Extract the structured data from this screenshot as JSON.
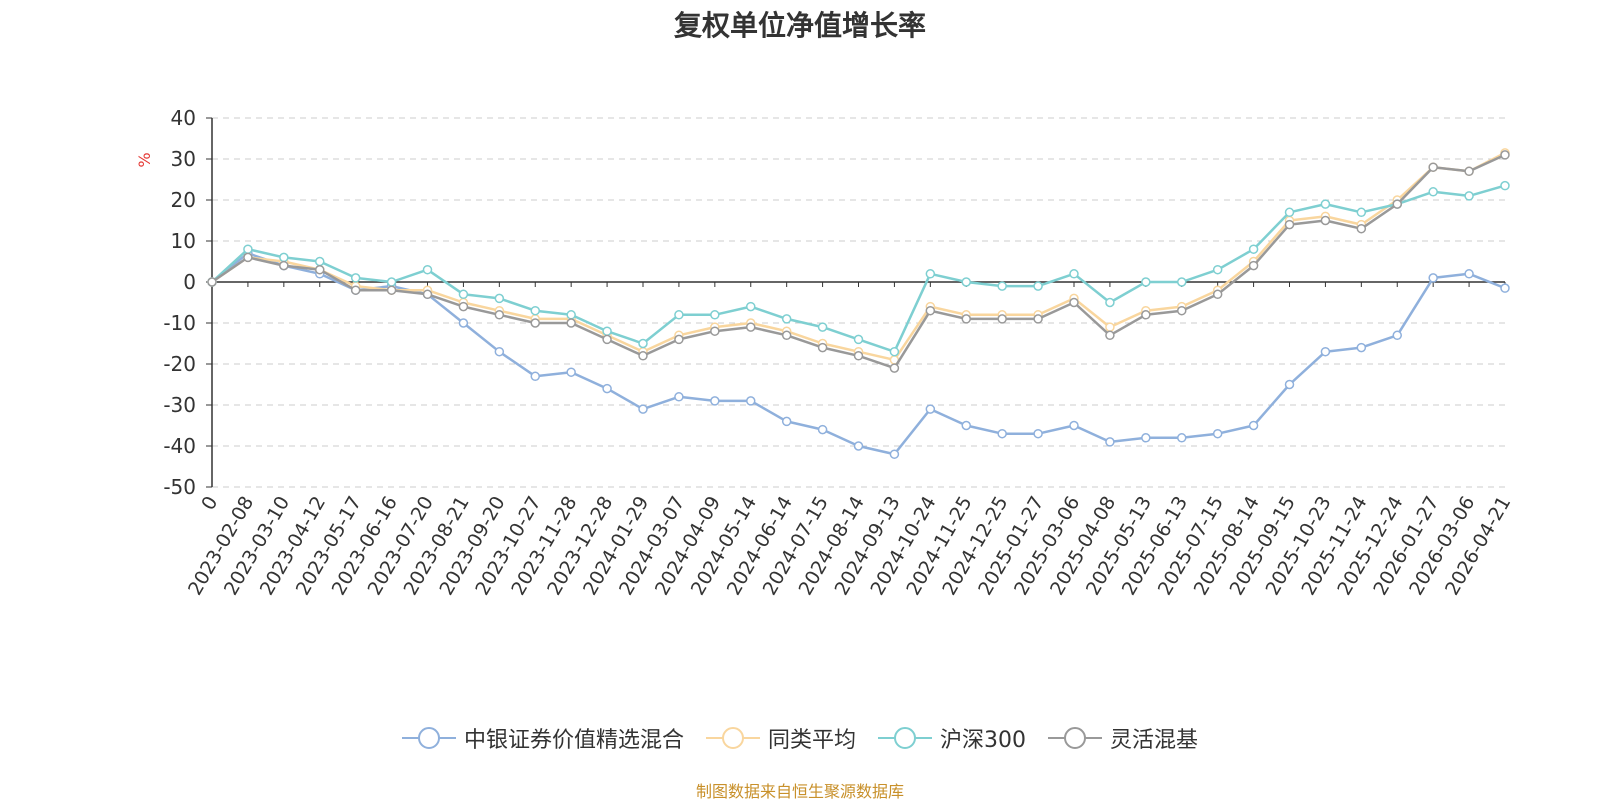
{
  "chart_data": {
    "type": "line",
    "title": "复权单位净值增长率",
    "ylabel": "%",
    "ylim": [
      -50,
      40
    ],
    "yticks": [
      -50,
      -40,
      -30,
      -20,
      -10,
      0,
      10,
      20,
      30,
      40
    ],
    "grid": true,
    "legend_position": "bottom",
    "x": [
      "0",
      "2023-02-08",
      "2023-03-10",
      "2023-04-12",
      "2023-05-17",
      "2023-06-16",
      "2023-07-20",
      "2023-08-21",
      "2023-09-20",
      "2023-10-27",
      "2023-11-28",
      "2023-12-28",
      "2024-01-29",
      "2024-03-07",
      "2024-04-09",
      "2024-05-14",
      "2024-06-14",
      "2024-07-15",
      "2024-08-14",
      "2024-09-13",
      "2024-10-24",
      "2024-11-25",
      "2024-12-25",
      "2025-01-27",
      "2025-03-06",
      "2025-04-08",
      "2025-05-13",
      "2025-06-13",
      "2025-07-15",
      "2025-08-14",
      "2025-09-15",
      "2025-10-23",
      "2025-11-24",
      "2025-12-24",
      "2026-01-27",
      "2026-03-06",
      "2026-04-21"
    ],
    "series": [
      {
        "name": "中银证券价值精选混合",
        "color": "#8fb0dc",
        "values": [
          0,
          7,
          4,
          2,
          -2,
          -1,
          -3,
          -10,
          -17,
          -23,
          -22,
          -26,
          -31,
          -28,
          -29,
          -29,
          -34,
          -36,
          -40,
          -42,
          -31,
          -35,
          -37,
          -37,
          -35,
          -39,
          -38,
          -38,
          -37,
          -35,
          -25,
          -17,
          -16,
          -13,
          1,
          2,
          -1.5
        ]
      },
      {
        "name": "同类平均",
        "color": "#f9d69e",
        "values": [
          0,
          6,
          5,
          3,
          -1,
          -2,
          -2,
          -5,
          -7,
          -9,
          -9,
          -13,
          -17,
          -13,
          -11,
          -10,
          -12,
          -15,
          -17,
          -19,
          -6,
          -8,
          -8,
          -8,
          -4,
          -11,
          -7,
          -6,
          -2,
          5,
          15,
          16,
          14,
          20,
          28,
          27,
          31.5
        ]
      },
      {
        "name": "沪深300",
        "color": "#7ecfd1",
        "values": [
          0,
          8,
          6,
          5,
          1,
          0,
          3,
          -3,
          -4,
          -7,
          -8,
          -12,
          -15,
          -8,
          -8,
          -6,
          -9,
          -11,
          -14,
          -17,
          2,
          0,
          -1,
          -1,
          2,
          -5,
          0,
          0,
          3,
          8,
          17,
          19,
          17,
          19,
          22,
          21,
          23.5
        ]
      },
      {
        "name": "灵活混基",
        "color": "#999999",
        "values": [
          0,
          6,
          4,
          3,
          -2,
          -2,
          -3,
          -6,
          -8,
          -10,
          -10,
          -14,
          -18,
          -14,
          -12,
          -11,
          -13,
          -16,
          -18,
          -21,
          -7,
          -9,
          -9,
          -9,
          -5,
          -13,
          -8,
          -7,
          -3,
          4,
          14,
          15,
          13,
          19,
          28,
          27,
          31
        ]
      }
    ]
  },
  "footer": {
    "source": "制图数据来自恒生聚源数据库"
  }
}
